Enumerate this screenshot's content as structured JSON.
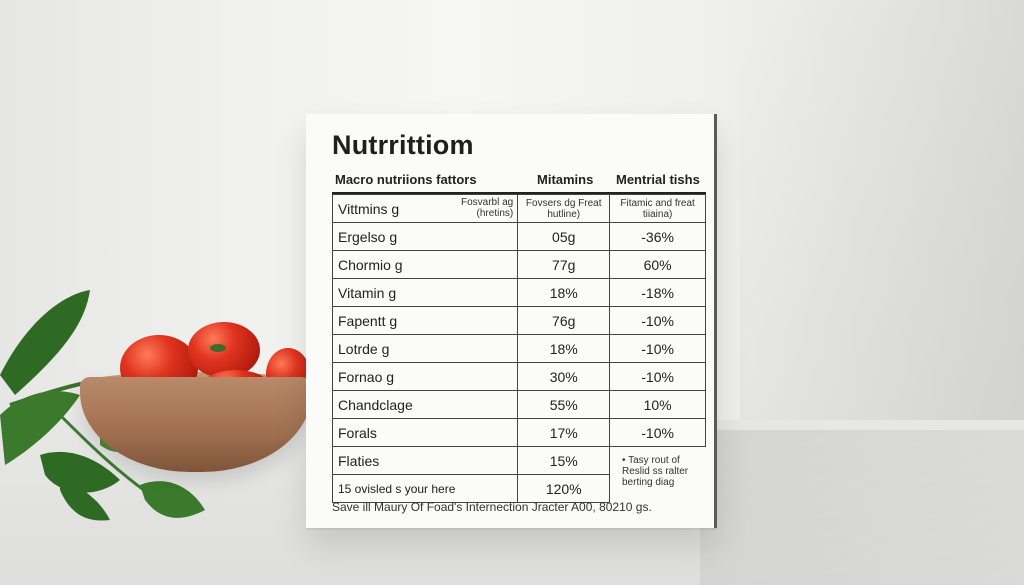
{
  "card": {
    "title": "Nutrrittiom",
    "headers": [
      "Macro nutriions fattors",
      "Mitamins",
      "Mentrial tishs"
    ],
    "sub_header": {
      "c1_note": "Fosvarbl ag (hretins)",
      "c1_label": "Vittmins g",
      "c2": "Fovsers dg Freat hutline)",
      "c3": "Fitamic and freat tiiaina)"
    },
    "rows": [
      {
        "label": "Ergelso g",
        "v2": "05g",
        "v3": "-36%"
      },
      {
        "label": "Chormio g",
        "v2": "77g",
        "v3": "60%"
      },
      {
        "label": "Vitamin g",
        "v2": "18%",
        "v3": "-18%"
      },
      {
        "label": "Fapentt g",
        "v2": "76g",
        "v3": "-10%"
      },
      {
        "label": "Lotrde g",
        "v2": "18%",
        "v3": "-10%"
      },
      {
        "label": "Fornao g",
        "v2": "30%",
        "v3": "-10%"
      },
      {
        "label": "Chandclage",
        "v2": "55%",
        "v3": "10%"
      },
      {
        "label": "Forals",
        "v2": "17%",
        "v3": "-10%"
      },
      {
        "label": "Flaties",
        "v2": "15%",
        "v3": ""
      },
      {
        "label": "15 ovisled s your here",
        "v2": "120%",
        "v3": ""
      }
    ],
    "side_note": "• Tasy rout of Reslid ss ralter berting diag",
    "footer": "Save ill Maury Of Foad's Internection Jracter A00, 80210 gs."
  }
}
